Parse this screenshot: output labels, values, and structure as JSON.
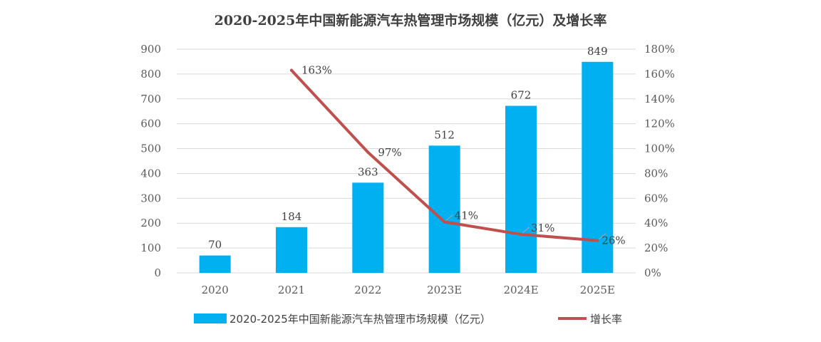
{
  "chart_data": {
    "type": "bar",
    "title": "2020-2025年中国新能源汽车热管理市场规模（亿元）及增长率",
    "categories": [
      "2020",
      "2021",
      "2022",
      "2023E",
      "2024E",
      "2025E"
    ],
    "series": [
      {
        "name": "2020-2025年中国新能源汽车热管理市场规模（亿元）",
        "type": "bar",
        "axis": "left",
        "color": "#00B0F0",
        "values": [
          70,
          184,
          363,
          512,
          672,
          849
        ],
        "labels": [
          "70",
          "184",
          "363",
          "512",
          "672",
          "849"
        ]
      },
      {
        "name": "增长率",
        "type": "line",
        "axis": "right",
        "color": "#C0504D",
        "values": [
          null,
          163,
          97,
          41,
          31,
          26
        ],
        "labels": [
          "",
          "163%",
          "97%",
          "41%",
          "31%",
          "26%"
        ]
      }
    ],
    "y_left": {
      "min": 0,
      "max": 900,
      "step": 100,
      "ticks": [
        "0",
        "100",
        "200",
        "300",
        "400",
        "500",
        "600",
        "700",
        "800",
        "900"
      ]
    },
    "y_right": {
      "min": 0,
      "max": 180,
      "step": 20,
      "ticks": [
        "0%",
        "20%",
        "40%",
        "60%",
        "80%",
        "100%",
        "120%",
        "140%",
        "160%",
        "180%"
      ]
    },
    "grid": true,
    "legend_position": "bottom"
  }
}
